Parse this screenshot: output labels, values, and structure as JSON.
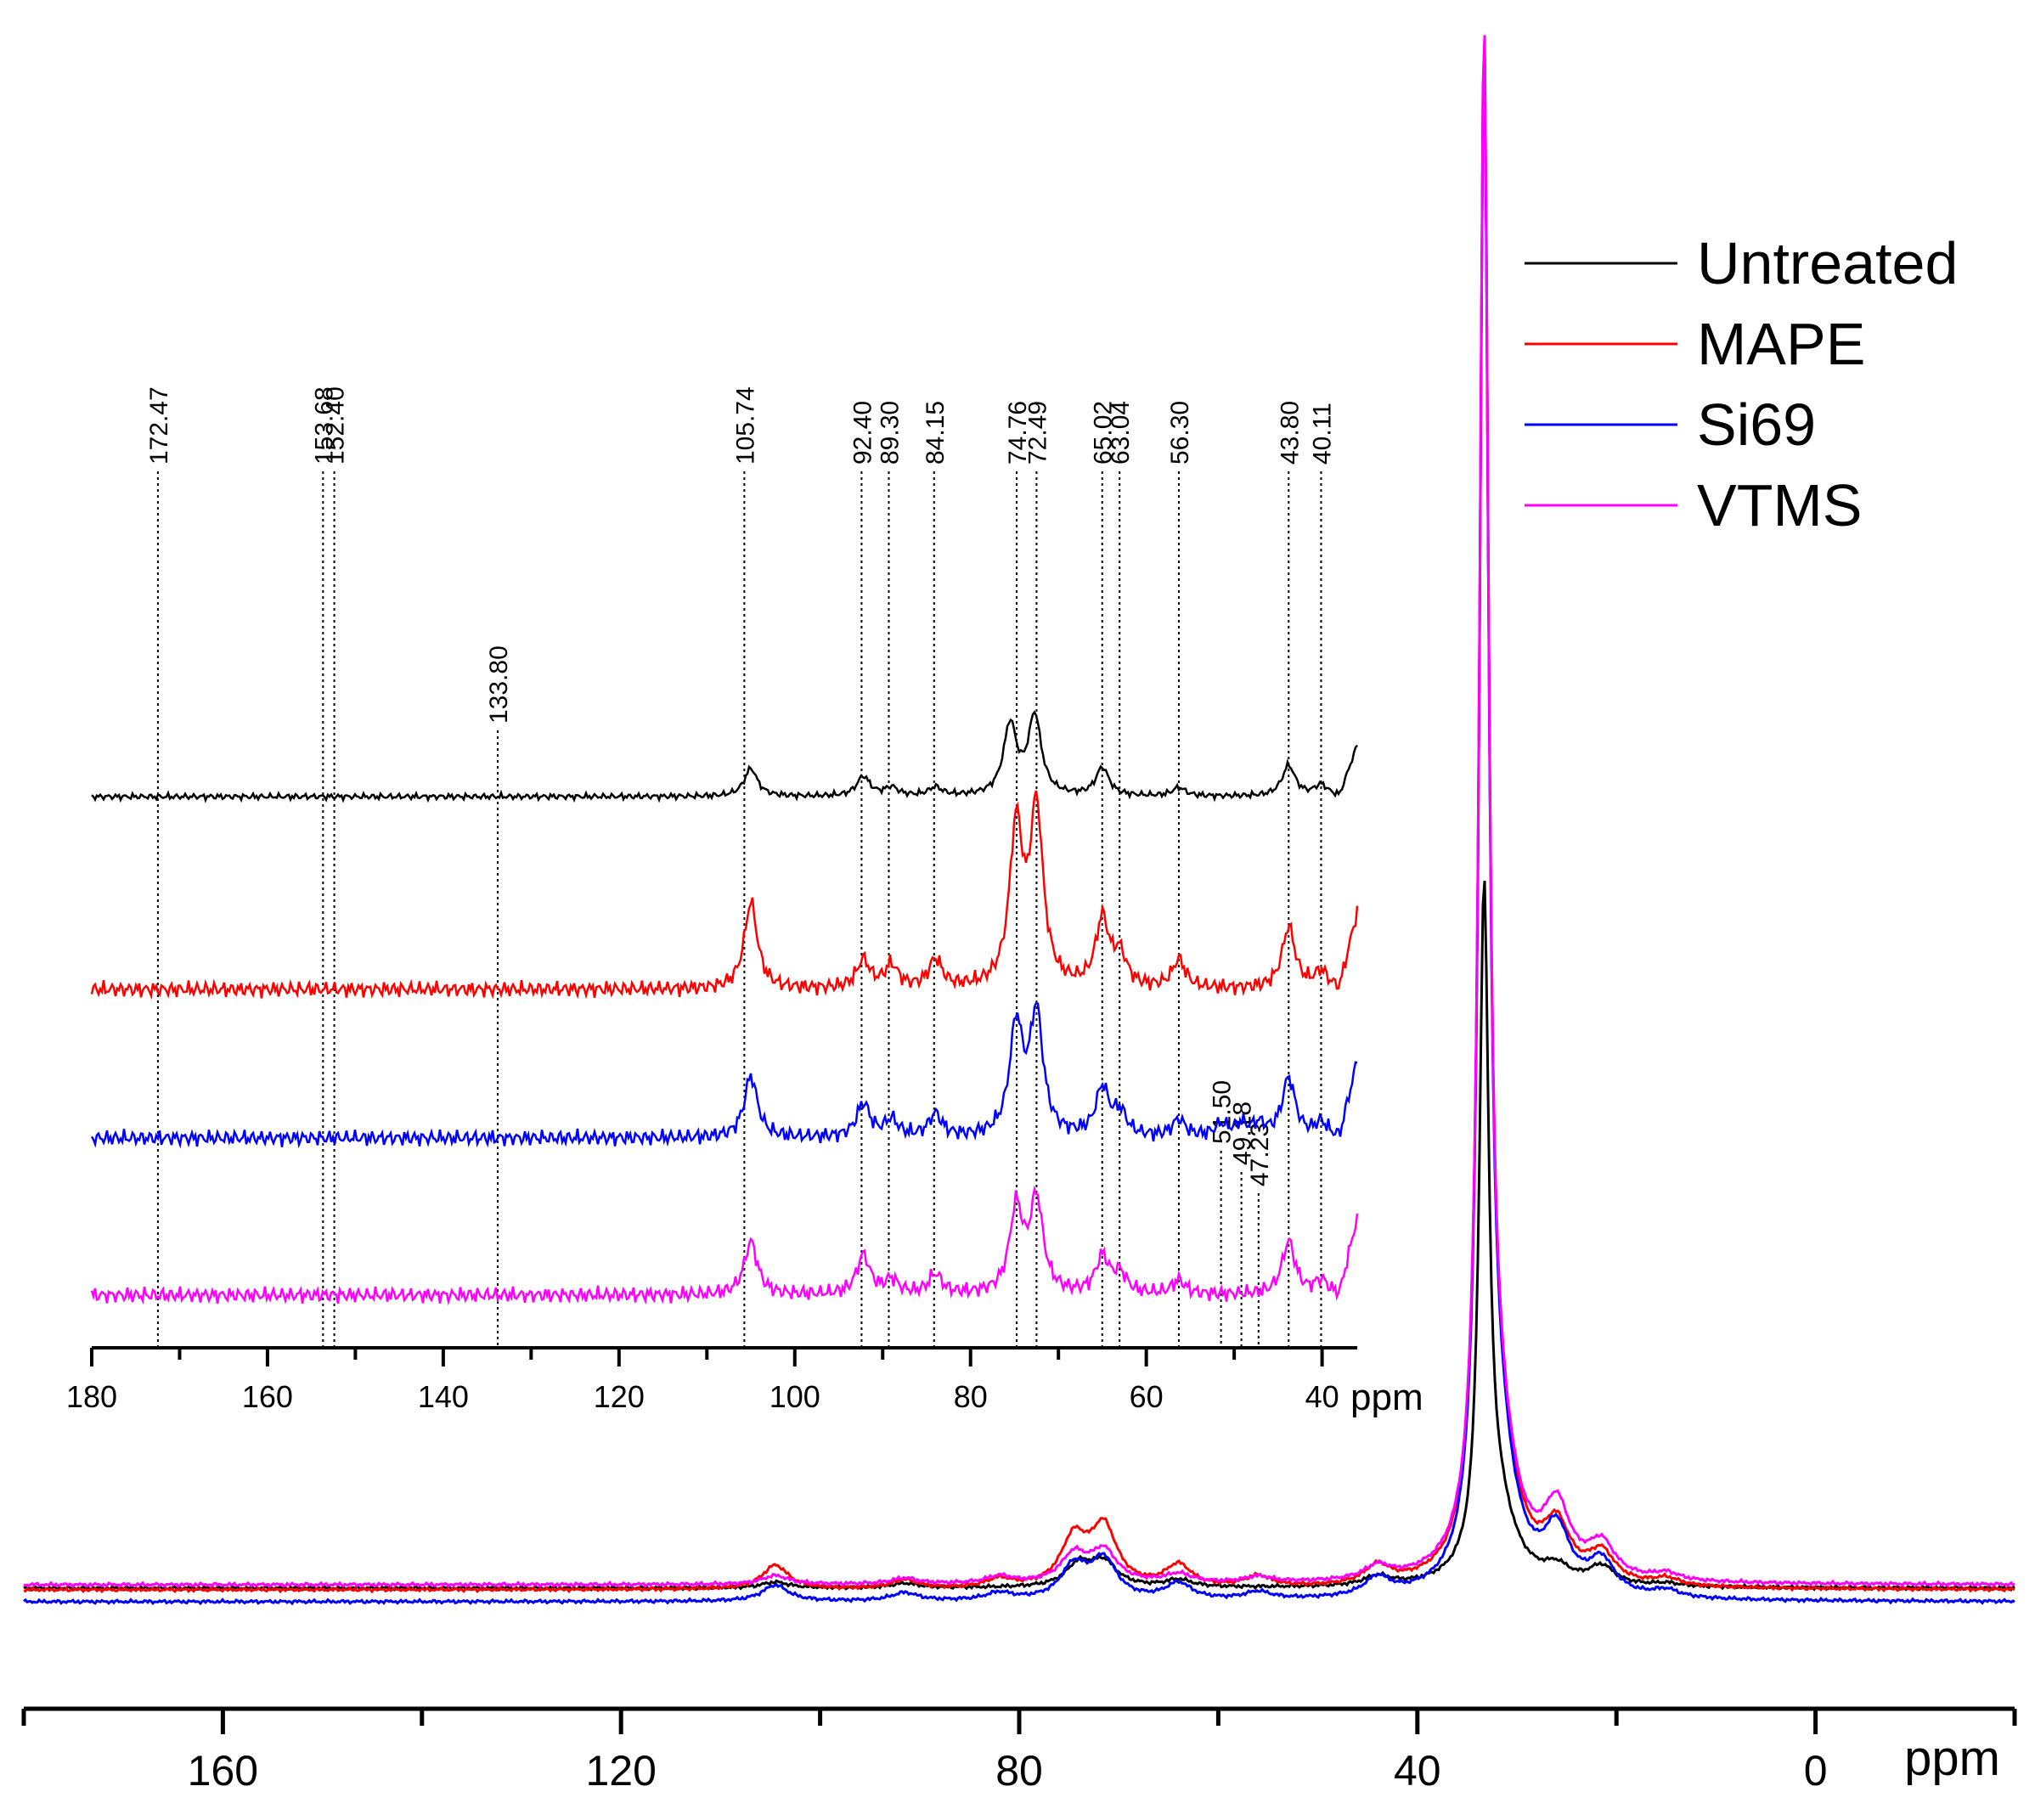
{
  "legend": [
    {
      "name": "Untreated",
      "color": "#000000"
    },
    {
      "name": "MAPE",
      "color": "#ff0000"
    },
    {
      "name": "Si69",
      "color": "#0000ff"
    },
    {
      "name": "VTMS",
      "color": "#ff00ff"
    }
  ],
  "chart_data": [
    {
      "type": "line",
      "title": "",
      "xlabel": "ppm",
      "ylabel": "",
      "x_reversed": true,
      "xlim": [
        180,
        -20
      ],
      "x_ticks": [
        160,
        120,
        80,
        40,
        0
      ],
      "x_minor_ticks": [
        180,
        140,
        100,
        60,
        20,
        -20
      ],
      "grid": false,
      "legend_position": "top-right",
      "series": [
        {
          "name": "Untreated",
          "color": "#000000",
          "peaks": [
            [
              104.5,
              0.8
            ],
            [
              91.5,
              0.6
            ],
            [
              74,
              3.0
            ],
            [
              71.5,
              3.2
            ],
            [
              64,
              1.0
            ],
            [
              44,
              1.3
            ],
            [
              33.3,
              90
            ],
            [
              32,
              10
            ],
            [
              26,
              2.0
            ],
            [
              21.5,
              2.5
            ],
            [
              15,
              0.4
            ]
          ]
        },
        {
          "name": "MAPE",
          "color": "#ff0000",
          "peaks": [
            [
              104.5,
              3.3
            ],
            [
              91.5,
              1.2
            ],
            [
              82,
              1.2
            ],
            [
              74.5,
              6.5
            ],
            [
              71.5,
              8.0
            ],
            [
              64,
              3.0
            ],
            [
              56,
              1.5
            ],
            [
              44,
              2.5
            ],
            [
              33.3,
              200
            ],
            [
              32,
              18
            ],
            [
              26,
              7.0
            ],
            [
              21.5,
              4.0
            ],
            [
              15,
              1.0
            ]
          ]
        },
        {
          "name": "Si69",
          "color": "#0000ff",
          "peaks": [
            [
              104.5,
              2.2
            ],
            [
              91.5,
              1.1
            ],
            [
              82,
              1.0
            ],
            [
              74.5,
              4.5
            ],
            [
              71.5,
              5.3
            ],
            [
              64,
              2.2
            ],
            [
              56,
              1.0
            ],
            [
              44,
              2.5
            ],
            [
              33.3,
              200
            ],
            [
              32,
              18
            ],
            [
              26,
              8.0
            ],
            [
              21.5,
              4.5
            ],
            [
              15,
              1.0
            ]
          ]
        },
        {
          "name": "VTMS",
          "color": "#ff00ff",
          "peaks": [
            [
              104.5,
              1.2
            ],
            [
              91.5,
              0.8
            ],
            [
              82,
              1.0
            ],
            [
              74.5,
              3.8
            ],
            [
              71.5,
              4.3
            ],
            [
              64,
              1.2
            ],
            [
              56,
              0.8
            ],
            [
              44,
              1.8
            ],
            [
              33.3,
              200
            ],
            [
              32,
              18
            ],
            [
              26,
              9.0
            ],
            [
              21.5,
              4.5
            ],
            [
              15,
              1.0
            ]
          ]
        }
      ]
    },
    {
      "type": "line",
      "title": "",
      "xlabel": "ppm",
      "ylabel": "",
      "x_reversed": true,
      "xlim": [
        180,
        36
      ],
      "x_ticks": [
        180,
        160,
        140,
        120,
        100,
        80,
        60,
        40
      ],
      "x_minor_ticks": [
        170,
        150,
        130,
        110,
        90,
        70,
        50
      ],
      "grid": false,
      "peak_labels": [
        {
          "ppm": 172.47,
          "label": "172.47"
        },
        {
          "ppm": 153.68,
          "label": "153.68"
        },
        {
          "ppm": 152.4,
          "label": "152.40"
        },
        {
          "ppm": 133.8,
          "label": "133.80"
        },
        {
          "ppm": 105.74,
          "label": "105.74"
        },
        {
          "ppm": 92.4,
          "label": "92.40"
        },
        {
          "ppm": 89.3,
          "label": "89.30"
        },
        {
          "ppm": 84.15,
          "label": "84.15"
        },
        {
          "ppm": 74.76,
          "label": "74.76"
        },
        {
          "ppm": 72.49,
          "label": "72.49"
        },
        {
          "ppm": 65.02,
          "label": "65.02"
        },
        {
          "ppm": 63.04,
          "label": "63.04"
        },
        {
          "ppm": 56.3,
          "label": "56.30"
        },
        {
          "ppm": 51.5,
          "label": "51.50"
        },
        {
          "ppm": 49.18,
          "label": "49.18"
        },
        {
          "ppm": 47.23,
          "label": "47.23"
        },
        {
          "ppm": 43.8,
          "label": "43.80"
        },
        {
          "ppm": 40.11,
          "label": "40.11"
        }
      ],
      "series": [
        {
          "name": "Untreated",
          "color": "#000000",
          "peaks": [
            [
              105.0,
              1.0
            ],
            [
              92.2,
              0.7
            ],
            [
              89.0,
              0.3
            ],
            [
              84.0,
              0.3
            ],
            [
              75.5,
              2.5
            ],
            [
              72.7,
              2.8
            ],
            [
              65.0,
              1.0
            ],
            [
              56.3,
              0.3
            ],
            [
              43.8,
              1.1
            ],
            [
              40.1,
              0.4
            ]
          ]
        },
        {
          "name": "MAPE",
          "color": "#ff0000",
          "peaks": [
            [
              105.0,
              3.1
            ],
            [
              92.2,
              1.0
            ],
            [
              89.0,
              0.8
            ],
            [
              84.0,
              1.0
            ],
            [
              74.8,
              5.6
            ],
            [
              72.5,
              6.2
            ],
            [
              65.0,
              2.4
            ],
            [
              63.0,
              1.1
            ],
            [
              56.3,
              1.0
            ],
            [
              43.8,
              2.2
            ],
            [
              40.1,
              0.6
            ]
          ]
        },
        {
          "name": "Si69",
          "color": "#0000ff",
          "peaks": [
            [
              105.0,
              2.2
            ],
            [
              92.2,
              1.2
            ],
            [
              89.0,
              0.6
            ],
            [
              84.0,
              0.8
            ],
            [
              74.8,
              3.9
            ],
            [
              72.5,
              4.3
            ],
            [
              65.0,
              1.7
            ],
            [
              63.0,
              0.8
            ],
            [
              56.3,
              0.6
            ],
            [
              51.5,
              0.4
            ],
            [
              49.2,
              0.4
            ],
            [
              47.2,
              0.4
            ],
            [
              43.8,
              2.1
            ],
            [
              40.1,
              0.5
            ]
          ]
        },
        {
          "name": "VTMS",
          "color": "#ff00ff",
          "peaks": [
            [
              105.0,
              1.9
            ],
            [
              92.2,
              1.4
            ],
            [
              89.0,
              0.5
            ],
            [
              84.0,
              0.7
            ],
            [
              74.8,
              3.0
            ],
            [
              72.5,
              3.3
            ],
            [
              65.0,
              1.3
            ],
            [
              63.0,
              0.7
            ],
            [
              56.3,
              0.5
            ],
            [
              43.8,
              1.9
            ],
            [
              40.1,
              0.5
            ]
          ]
        }
      ]
    }
  ]
}
